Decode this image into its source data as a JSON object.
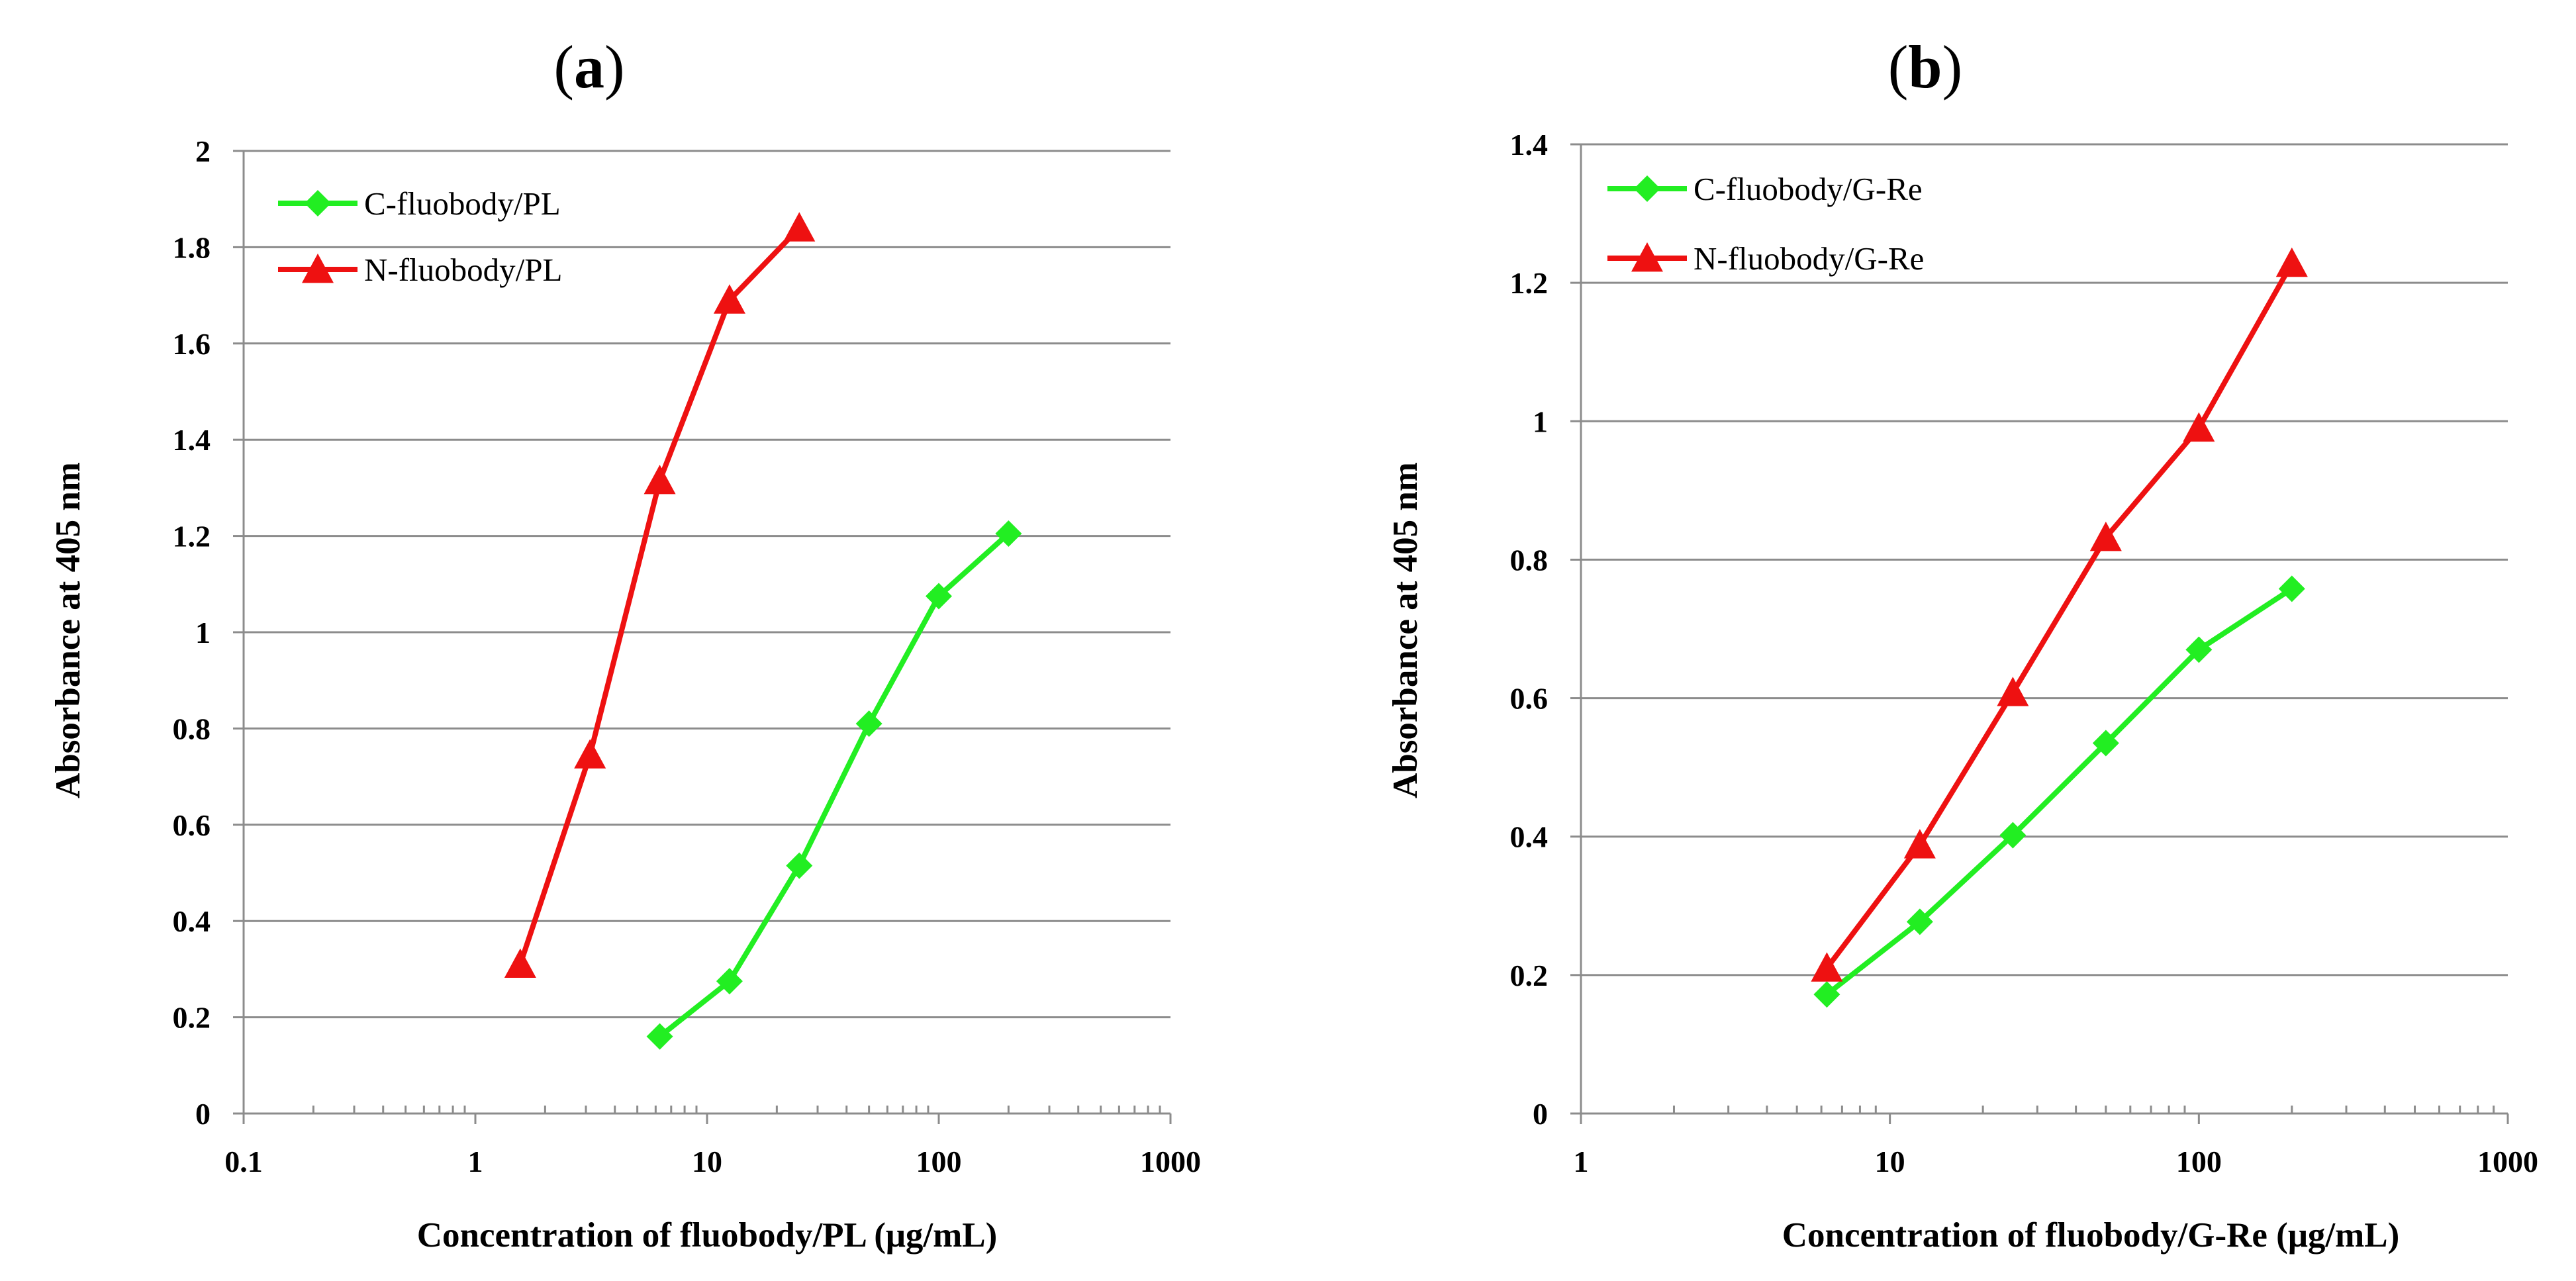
{
  "chart_data": [
    {
      "type": "line",
      "panel_label": "a",
      "xscale": "log",
      "xlim": [
        0.1,
        1000
      ],
      "ylim": [
        0,
        2
      ],
      "xticks": [
        0.1,
        1,
        10,
        100,
        1000
      ],
      "xtick_labels": [
        "0.1",
        "1",
        "10",
        "100",
        "1000"
      ],
      "yticks": [
        0,
        0.2,
        0.4,
        0.6,
        0.8,
        1,
        1.2,
        1.4,
        1.6,
        1.8,
        2
      ],
      "ytick_labels": [
        "0",
        "0.2",
        "0.4",
        "0.6",
        "0.8",
        "1",
        "1.2",
        "1.4",
        "1.6",
        "1.8",
        "2"
      ],
      "grid": true,
      "xlabel": "Concentration of fluobody/PL (μg/mL)",
      "ylabel": "Absorbance at 405 nm",
      "legend_position": "top-left",
      "series": [
        {
          "name": "C-fluobody/PL",
          "color": "#22ee22",
          "marker": "diamond",
          "x": [
            6.25,
            12.5,
            25,
            50,
            100,
            200
          ],
          "values": [
            0.16,
            0.275,
            0.515,
            0.81,
            1.075,
            1.205
          ]
        },
        {
          "name": "N-fluobody/PL",
          "color": "#ee1111",
          "marker": "triangle",
          "x": [
            1.5625,
            3.125,
            6.25,
            12.5,
            25
          ],
          "values": [
            0.31,
            0.745,
            1.315,
            1.69,
            1.84
          ]
        }
      ]
    },
    {
      "type": "line",
      "panel_label": "b",
      "xscale": "log",
      "xlim": [
        1,
        1000
      ],
      "ylim": [
        0,
        1.4
      ],
      "xticks": [
        1,
        10,
        100,
        1000
      ],
      "xtick_labels": [
        "1",
        "10",
        "100",
        "1000"
      ],
      "yticks": [
        0,
        0.2,
        0.4,
        0.6,
        0.8,
        1,
        1.2,
        1.4
      ],
      "ytick_labels": [
        "0",
        "0.2",
        "0.4",
        "0.6",
        "0.8",
        "1",
        "1.2",
        "1.4"
      ],
      "grid": true,
      "xlabel": "Concentration of fluobody/G-Re (μg/mL)",
      "ylabel": "Absorbance at 405 nm",
      "legend_position": "top-left",
      "series": [
        {
          "name": "C-fluobody/G-Re",
          "color": "#22ee22",
          "marker": "diamond",
          "x": [
            6.25,
            12.5,
            25,
            50,
            100,
            200
          ],
          "values": [
            0.172,
            0.277,
            0.402,
            0.535,
            0.67,
            0.758
          ]
        },
        {
          "name": "N-fluobody/G-Re",
          "color": "#ee1111",
          "marker": "triangle",
          "x": [
            6.25,
            12.5,
            25,
            50,
            100,
            200
          ],
          "values": [
            0.21,
            0.388,
            0.608,
            0.832,
            0.99,
            1.228
          ]
        }
      ]
    }
  ]
}
